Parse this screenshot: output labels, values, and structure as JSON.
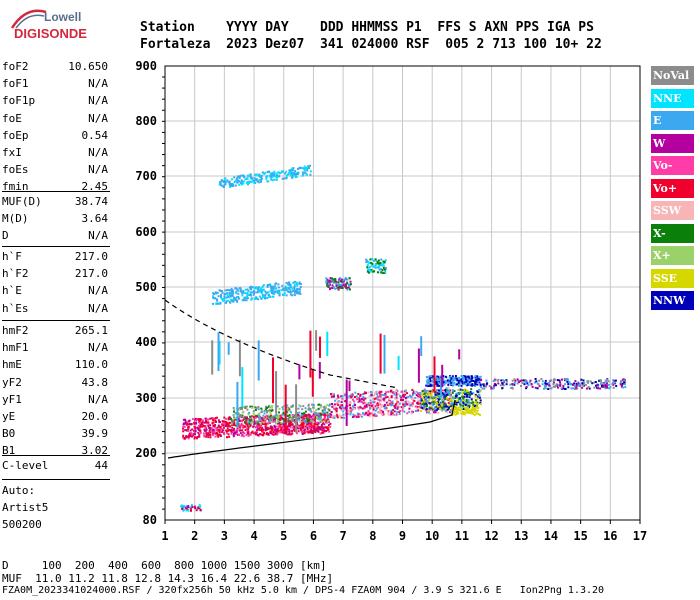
{
  "logo": {
    "top": "Lowell",
    "bottom": "DIGISONDE"
  },
  "header": {
    "line1": "Station    YYYY DAY    DDD HHMMSS P1  FFS S AXN PPS IGA PS",
    "line2": "Fortaleza  2023 Dez07  341 024000 RSF  005 2 713 100 10+ 22"
  },
  "sidebar": [
    [
      {
        "k": "foF2",
        "v": "10.650"
      },
      {
        "k": "foF1",
        "v": "N/A"
      },
      {
        "k": "foF1p",
        "v": "N/A"
      },
      {
        "k": "foE",
        "v": "N/A"
      },
      {
        "k": "foEp",
        "v": "0.54"
      },
      {
        "k": "fxI",
        "v": "N/A"
      },
      {
        "k": "foEs",
        "v": "N/A"
      },
      {
        "k": "fmin",
        "v": "2.45"
      }
    ],
    [
      {
        "k": "MUF(D)",
        "v": "38.74"
      },
      {
        "k": "M(D)",
        "v": "3.64"
      },
      {
        "k": "D",
        "v": "N/A"
      }
    ],
    [
      {
        "k": "h`F",
        "v": "217.0"
      },
      {
        "k": "h`F2",
        "v": "217.0"
      },
      {
        "k": "h`E",
        "v": "N/A"
      },
      {
        "k": "h`Es",
        "v": "N/A"
      }
    ],
    [
      {
        "k": "hmF2",
        "v": "265.1"
      },
      {
        "k": "hmF1",
        "v": "N/A"
      },
      {
        "k": "hmE",
        "v": "110.0"
      },
      {
        "k": "yF2",
        "v": "43.8"
      },
      {
        "k": "yF1",
        "v": "N/A"
      },
      {
        "k": "yE",
        "v": "20.0"
      },
      {
        "k": "B0",
        "v": "39.9"
      },
      {
        "k": "B1",
        "v": "3.02"
      }
    ],
    [
      {
        "k": "C-level",
        "v": "44"
      }
    ],
    [
      {
        "k": "Auto:",
        "v": ""
      },
      {
        "k": "Artist5",
        "v": ""
      },
      {
        "k": "500200",
        "v": ""
      }
    ]
  ],
  "legend": [
    {
      "label": "NoVal",
      "color": "#8c8c8c"
    },
    {
      "label": "NNE",
      "color": "#00e5ff"
    },
    {
      "label": "E",
      "color": "#3ba8f0"
    },
    {
      "label": "W",
      "color": "#b3009f"
    },
    {
      "label": "Vo-",
      "color": "#ff3ca8"
    },
    {
      "label": "Vo+",
      "color": "#f0002c"
    },
    {
      "label": "SSW",
      "color": "#f7b5b5"
    },
    {
      "label": "X-",
      "color": "#0a7f0a"
    },
    {
      "label": "X+",
      "color": "#9bd16b"
    },
    {
      "label": "SSE",
      "color": "#d7d700"
    },
    {
      "label": "NNW",
      "color": "#0000b8"
    }
  ],
  "axes": {
    "x_ticks": [
      "1",
      "2",
      "3",
      "4",
      "5",
      "6",
      "7",
      "8",
      "9",
      "10",
      "11",
      "12",
      "13",
      "14",
      "15",
      "16",
      "17"
    ],
    "y_ticks": [
      "900",
      "800",
      "700",
      "600",
      "500",
      "400",
      "300",
      "200",
      "80"
    ]
  },
  "footer": {
    "d_line": "D     100  200  400  600  800 1000 1500 3000 [km]",
    "muf_line": "MUF  11.0 11.2 11.8 12.8 14.3 16.4 22.6 38.7 [MHz]",
    "file_line": "FZA0M_2023341024000.RSF / 320fx256h 50 kHz 5.0 km / DPS-4 FZA0M 904 / 3.9 S 321.6 E   Ion2Png 1.3.20"
  }
}
